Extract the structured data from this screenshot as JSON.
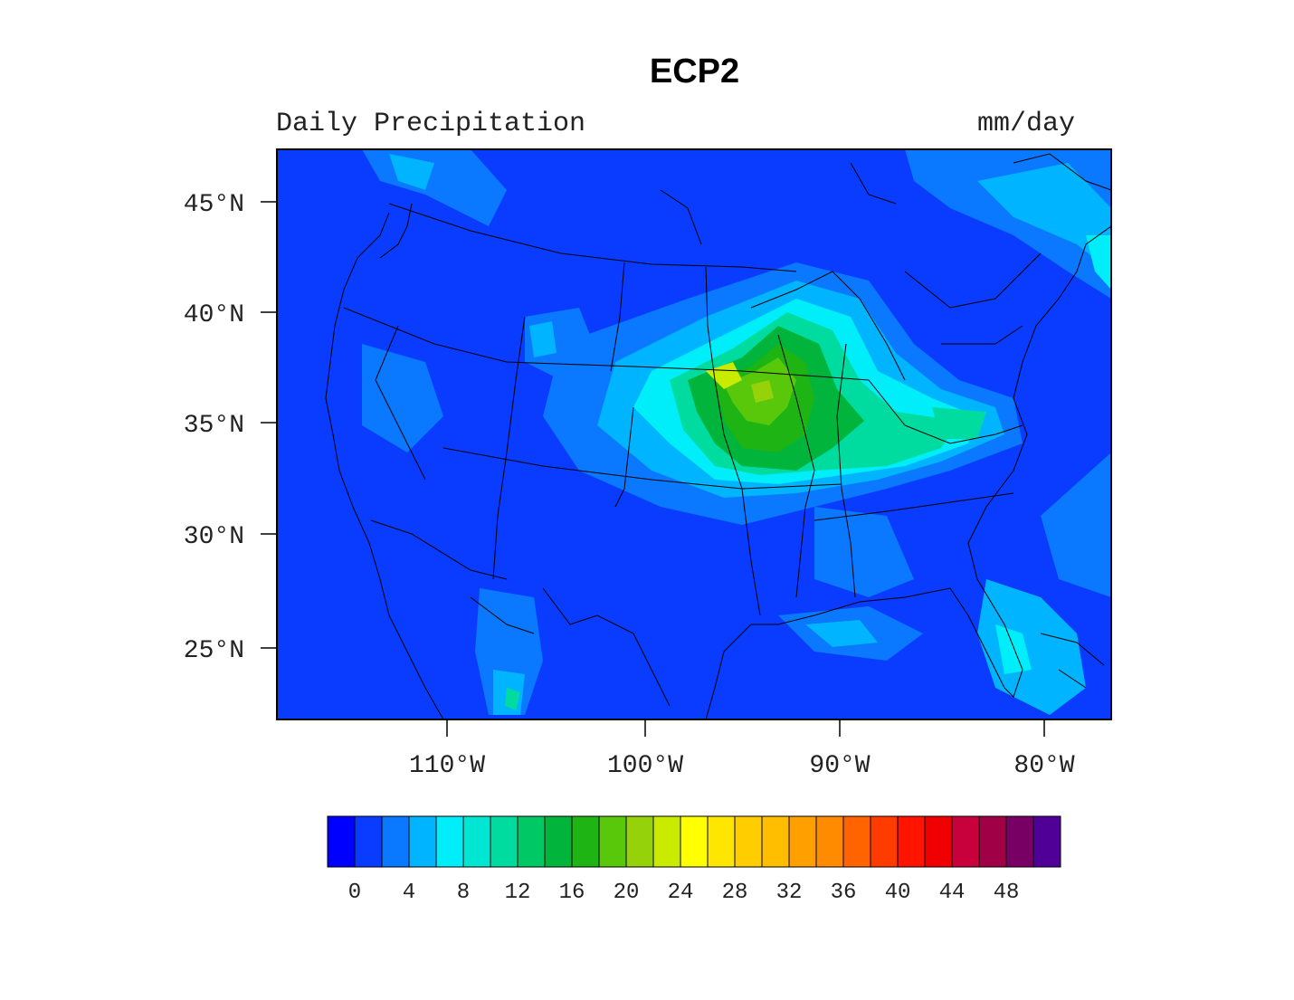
{
  "title": "ECP2",
  "left_string": "Daily Precipitation",
  "right_string": "mm/day",
  "map": {
    "region": "Contiguous United States",
    "lat_ticks": [
      "45°N",
      "40°N",
      "35°N",
      "30°N",
      "25°N"
    ],
    "lon_ticks": [
      "110°W",
      "100°W",
      "90°W",
      "80°W"
    ],
    "background_color": "#0a3cff",
    "max_region": "central Plains / Midwest"
  },
  "colorbar": {
    "labels": [
      "0",
      "4",
      "8",
      "12",
      "16",
      "20",
      "24",
      "28",
      "32",
      "36",
      "40",
      "44",
      "48"
    ],
    "colors": [
      "#0000ff",
      "#0a3cff",
      "#0a78ff",
      "#00b4ff",
      "#00eefa",
      "#00e6d2",
      "#00dca0",
      "#00c864",
      "#00b43c",
      "#1eb414",
      "#5ac80a",
      "#96d20a",
      "#c8eb00",
      "#ffff00",
      "#ffe600",
      "#ffcd00",
      "#ffbe00",
      "#ffa000",
      "#ff8c00",
      "#ff6400",
      "#ff3c00",
      "#ff1400",
      "#f00000",
      "#c8003c",
      "#a00046",
      "#780064",
      "#500096"
    ]
  }
}
